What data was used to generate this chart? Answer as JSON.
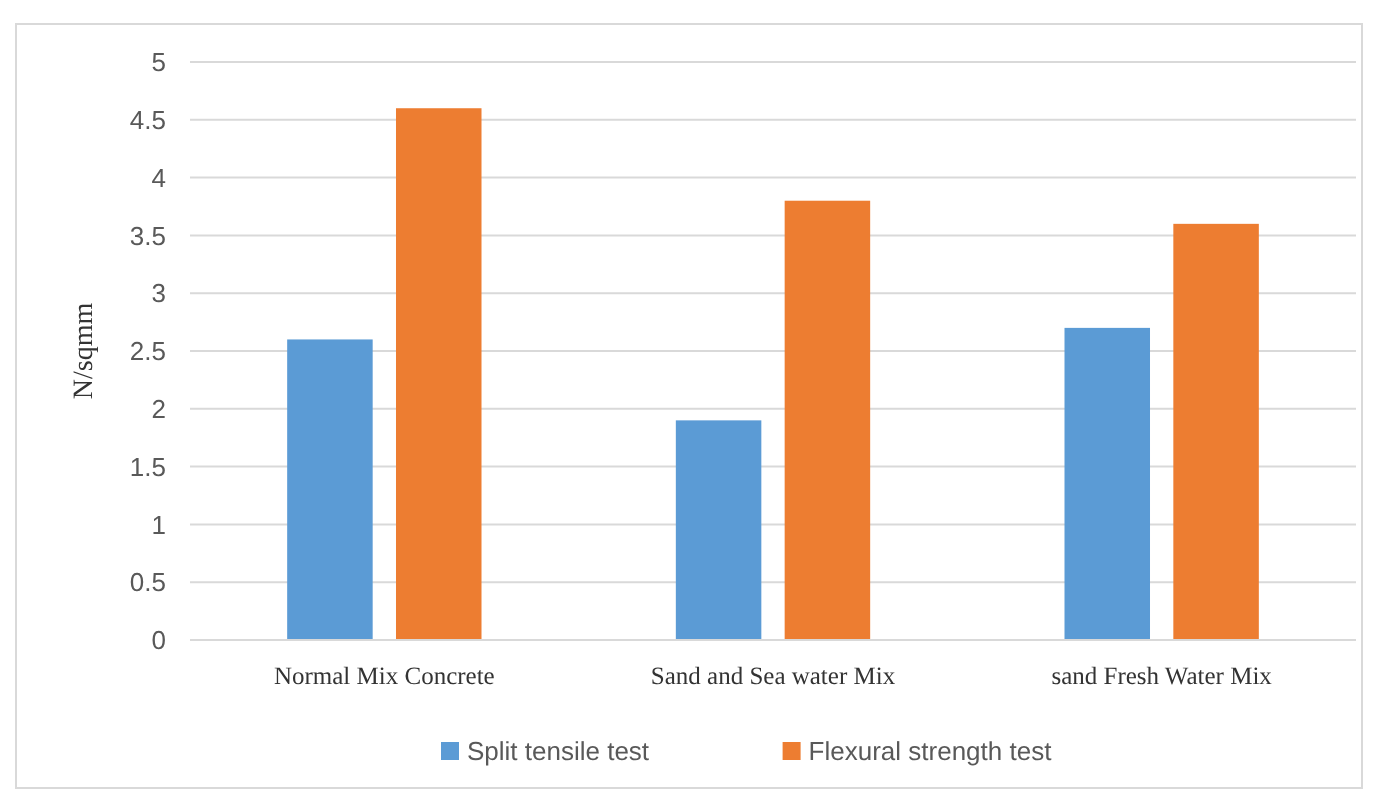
{
  "chart_data": {
    "type": "bar",
    "ylabel": "N/sqmm",
    "categories": [
      "Normal Mix Concrete",
      "Sand and Sea water Mix",
      "sand Fresh Water Mix"
    ],
    "series": [
      {
        "name": "Split tensile test",
        "color": "#5b9bd5",
        "values": [
          2.6,
          1.9,
          2.7
        ]
      },
      {
        "name": "Flexural strength test",
        "color": "#ed7d31",
        "values": [
          4.6,
          3.8,
          3.6
        ]
      }
    ],
    "ylim": [
      0,
      5
    ],
    "yticks": [
      0,
      0.5,
      1,
      1.5,
      2,
      2.5,
      3,
      3.5,
      4,
      4.5,
      5
    ],
    "grid": "y",
    "legend": "bottom"
  }
}
